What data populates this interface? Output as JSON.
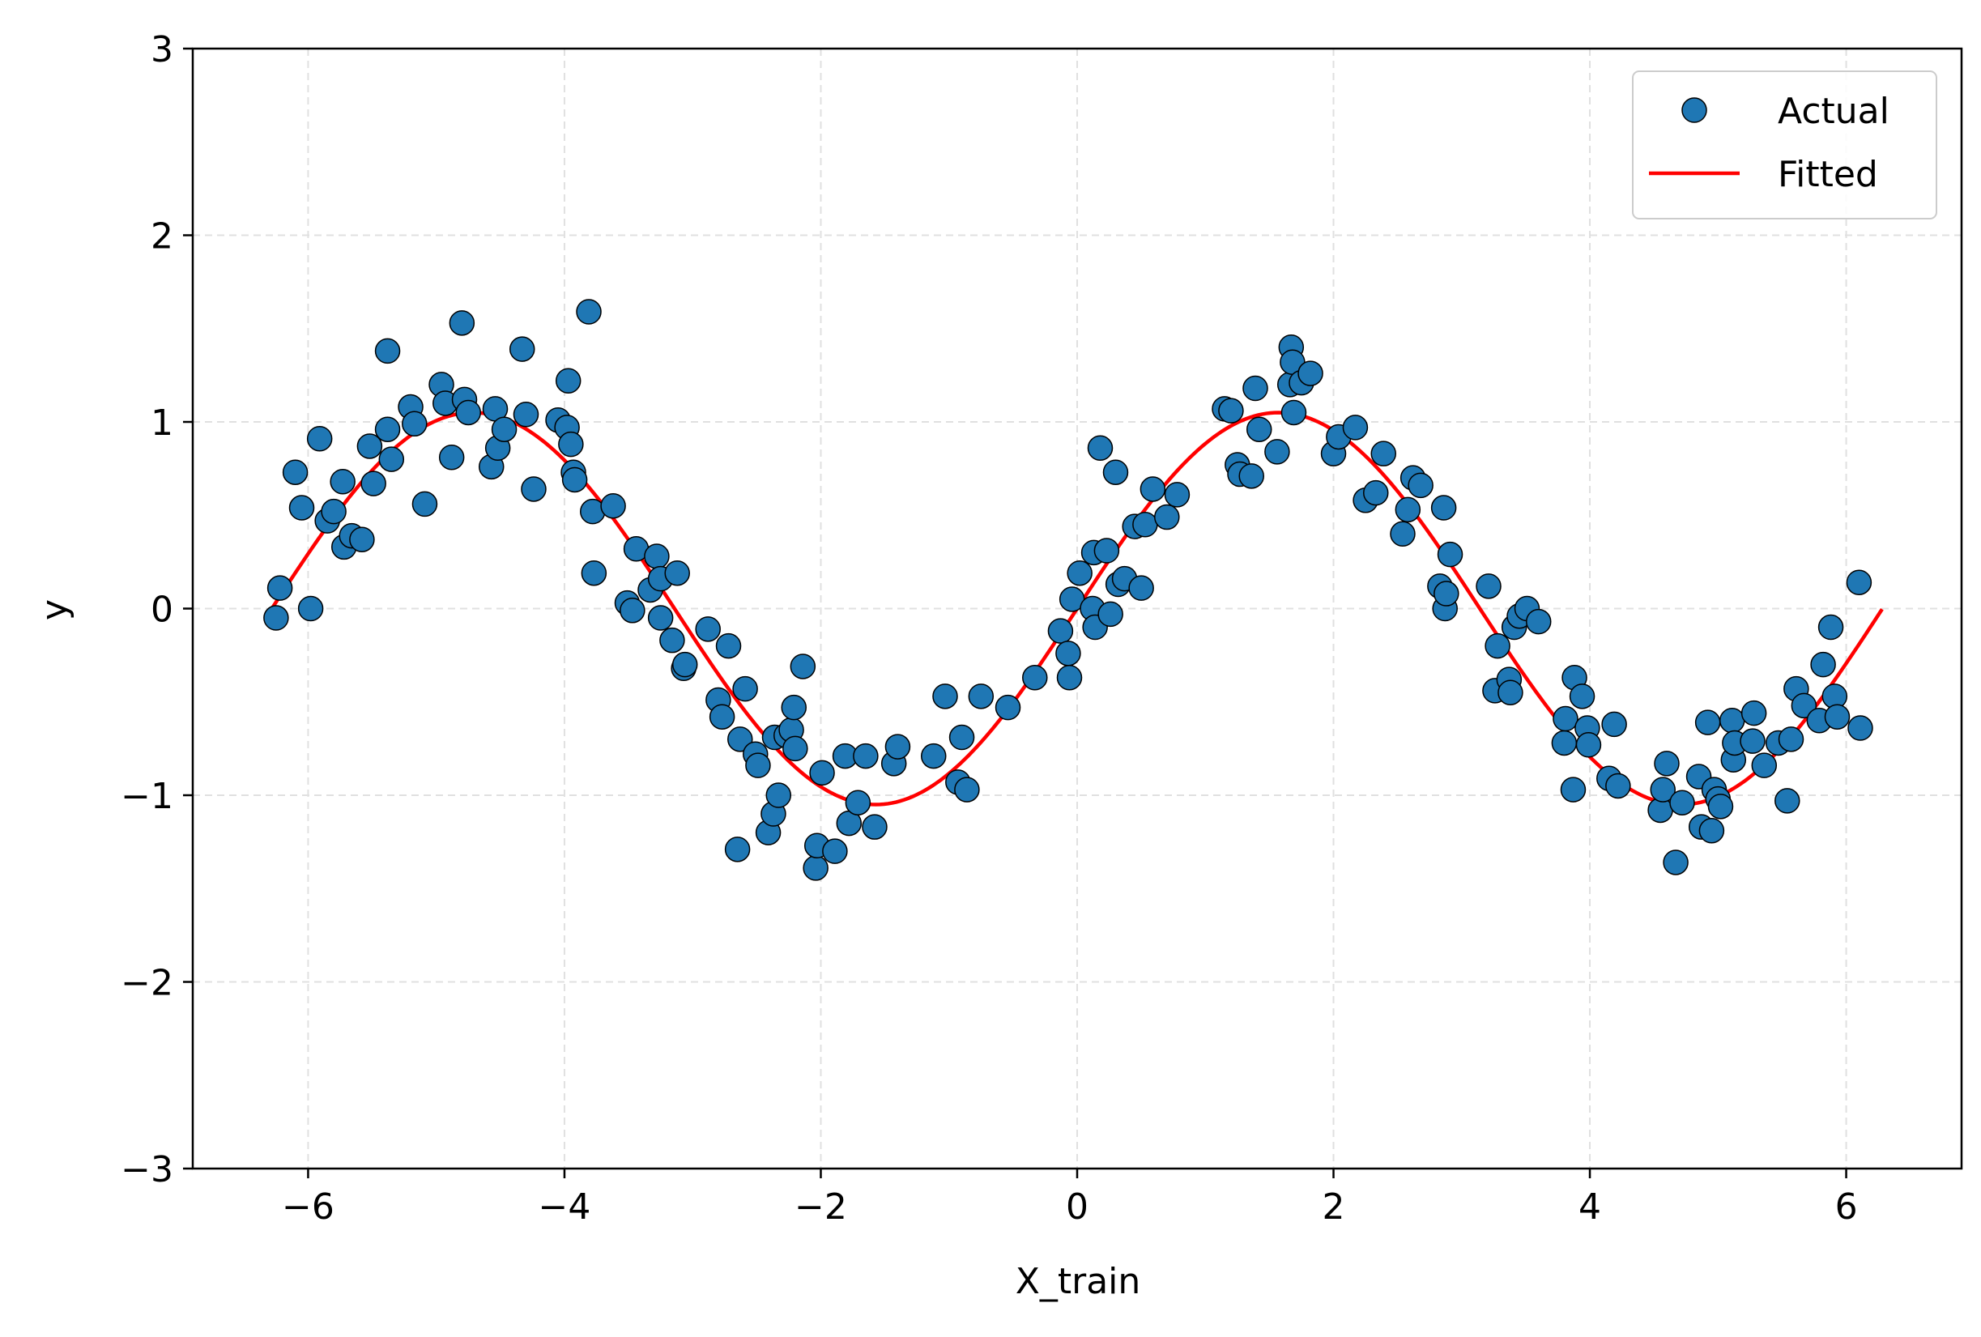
{
  "chart_data": {
    "type": "scatter",
    "title": "",
    "xlabel": "X_train",
    "ylabel": "y",
    "xlim": [
      -6.9,
      6.9
    ],
    "ylim": [
      -3,
      3
    ],
    "xticks": [
      -6,
      -4,
      -2,
      0,
      2,
      4,
      6
    ],
    "yticks": [
      -3,
      -2,
      -1,
      0,
      1,
      2,
      3
    ],
    "xtick_labels": [
      "−6",
      "−4",
      "−2",
      "0",
      "2",
      "4",
      "6"
    ],
    "ytick_labels": [
      "−3",
      "−2",
      "−1",
      "0",
      "1",
      "2",
      "3"
    ],
    "grid": true,
    "legend_position": "top-right",
    "legend": [
      {
        "label": "Actual",
        "kind": "marker",
        "color": "#1f77b4"
      },
      {
        "label": "Fitted",
        "kind": "line",
        "color": "#ff0000"
      }
    ],
    "colors": {
      "actual": "#1f77b4",
      "fitted": "#ff0000",
      "grid": "#e0e0e0"
    },
    "series": [
      {
        "name": "Actual",
        "kind": "scatter",
        "points": [
          [
            -6.25,
            -0.05
          ],
          [
            -6.22,
            0.11
          ],
          [
            -6.1,
            0.73
          ],
          [
            -6.05,
            0.54
          ],
          [
            -5.98,
            0.0
          ],
          [
            -5.91,
            0.91
          ],
          [
            -5.85,
            0.47
          ],
          [
            -5.8,
            0.52
          ],
          [
            -5.73,
            0.68
          ],
          [
            -5.72,
            0.33
          ],
          [
            -5.66,
            0.39
          ],
          [
            -5.58,
            0.37
          ],
          [
            -5.52,
            0.87
          ],
          [
            -5.49,
            0.67
          ],
          [
            -5.38,
            1.38
          ],
          [
            -5.38,
            0.96
          ],
          [
            -5.35,
            0.8
          ],
          [
            -5.2,
            1.08
          ],
          [
            -5.17,
            0.99
          ],
          [
            -5.09,
            0.56
          ],
          [
            -4.96,
            1.2
          ],
          [
            -4.93,
            1.1
          ],
          [
            -4.88,
            0.81
          ],
          [
            -4.8,
            1.53
          ],
          [
            -4.78,
            1.12
          ],
          [
            -4.75,
            1.05
          ],
          [
            -4.57,
            0.76
          ],
          [
            -4.54,
            1.07
          ],
          [
            -4.52,
            0.86
          ],
          [
            -4.47,
            0.96
          ],
          [
            -4.33,
            1.39
          ],
          [
            -4.3,
            1.04
          ],
          [
            -4.24,
            0.64
          ],
          [
            -4.05,
            1.01
          ],
          [
            -3.98,
            0.97
          ],
          [
            -3.97,
            1.22
          ],
          [
            -3.95,
            0.88
          ],
          [
            -3.93,
            0.73
          ],
          [
            -3.92,
            0.69
          ],
          [
            -3.81,
            1.59
          ],
          [
            -3.78,
            0.52
          ],
          [
            -3.77,
            0.19
          ],
          [
            -3.62,
            0.55
          ],
          [
            -3.51,
            0.03
          ],
          [
            -3.47,
            -0.01
          ],
          [
            -3.44,
            0.32
          ],
          [
            -3.33,
            0.1
          ],
          [
            -3.28,
            0.28
          ],
          [
            -3.25,
            0.16
          ],
          [
            -3.25,
            -0.05
          ],
          [
            -3.16,
            -0.17
          ],
          [
            -3.12,
            0.19
          ],
          [
            -3.07,
            -0.32
          ],
          [
            -3.06,
            -0.3
          ],
          [
            -2.88,
            -0.11
          ],
          [
            -2.8,
            -0.49
          ],
          [
            -2.77,
            -0.58
          ],
          [
            -2.72,
            -0.2
          ],
          [
            -2.65,
            -1.29
          ],
          [
            -2.63,
            -0.7
          ],
          [
            -2.59,
            -0.43
          ],
          [
            -2.51,
            -0.78
          ],
          [
            -2.49,
            -0.84
          ],
          [
            -2.41,
            -1.2
          ],
          [
            -2.37,
            -1.1
          ],
          [
            -2.36,
            -0.69
          ],
          [
            -2.33,
            -1.0
          ],
          [
            -2.27,
            -0.68
          ],
          [
            -2.23,
            -0.65
          ],
          [
            -2.21,
            -0.53
          ],
          [
            -2.2,
            -0.75
          ],
          [
            -2.14,
            -0.31
          ],
          [
            -2.04,
            -1.39
          ],
          [
            -2.03,
            -1.27
          ],
          [
            -1.99,
            -0.88
          ],
          [
            -1.89,
            -1.3
          ],
          [
            -1.81,
            -0.79
          ],
          [
            -1.78,
            -1.15
          ],
          [
            -1.71,
            -1.04
          ],
          [
            -1.65,
            -0.79
          ],
          [
            -1.58,
            -1.17
          ],
          [
            -1.43,
            -0.83
          ],
          [
            -1.4,
            -0.74
          ],
          [
            -1.12,
            -0.79
          ],
          [
            -1.03,
            -0.47
          ],
          [
            -0.93,
            -0.93
          ],
          [
            -0.9,
            -0.69
          ],
          [
            -0.86,
            -0.97
          ],
          [
            -0.75,
            -0.47
          ],
          [
            -0.54,
            -0.53
          ],
          [
            -0.33,
            -0.37
          ],
          [
            -0.13,
            -0.12
          ],
          [
            -0.07,
            -0.24
          ],
          [
            -0.06,
            -0.37
          ],
          [
            -0.04,
            0.05
          ],
          [
            0.02,
            0.19
          ],
          [
            0.12,
            0.0
          ],
          [
            0.13,
            0.3
          ],
          [
            0.14,
            -0.1
          ],
          [
            0.18,
            0.86
          ],
          [
            0.23,
            0.31
          ],
          [
            0.26,
            -0.03
          ],
          [
            0.3,
            0.73
          ],
          [
            0.32,
            0.13
          ],
          [
            0.37,
            0.16
          ],
          [
            0.45,
            0.44
          ],
          [
            0.5,
            0.11
          ],
          [
            0.53,
            0.45
          ],
          [
            0.59,
            0.64
          ],
          [
            0.7,
            0.49
          ],
          [
            0.78,
            0.61
          ],
          [
            1.15,
            1.07
          ],
          [
            1.2,
            1.06
          ],
          [
            1.25,
            0.77
          ],
          [
            1.27,
            0.72
          ],
          [
            1.36,
            0.71
          ],
          [
            1.39,
            1.18
          ],
          [
            1.42,
            0.96
          ],
          [
            1.56,
            0.84
          ],
          [
            1.66,
            1.2
          ],
          [
            1.67,
            1.4
          ],
          [
            1.68,
            1.32
          ],
          [
            1.69,
            1.05
          ],
          [
            1.75,
            1.21
          ],
          [
            1.82,
            1.26
          ],
          [
            2.0,
            0.83
          ],
          [
            2.04,
            0.92
          ],
          [
            2.17,
            0.97
          ],
          [
            2.25,
            0.58
          ],
          [
            2.33,
            0.62
          ],
          [
            2.39,
            0.83
          ],
          [
            2.54,
            0.4
          ],
          [
            2.58,
            0.53
          ],
          [
            2.62,
            0.7
          ],
          [
            2.68,
            0.66
          ],
          [
            2.83,
            0.12
          ],
          [
            2.86,
            0.54
          ],
          [
            2.87,
            0.0
          ],
          [
            2.88,
            0.08
          ],
          [
            2.91,
            0.29
          ],
          [
            3.21,
            0.12
          ],
          [
            3.26,
            -0.44
          ],
          [
            3.28,
            -0.2
          ],
          [
            3.37,
            -0.38
          ],
          [
            3.38,
            -0.45
          ],
          [
            3.41,
            -0.1
          ],
          [
            3.45,
            -0.04
          ],
          [
            3.51,
            0.0
          ],
          [
            3.6,
            -0.07
          ],
          [
            3.8,
            -0.72
          ],
          [
            3.81,
            -0.59
          ],
          [
            3.87,
            -0.97
          ],
          [
            3.88,
            -0.37
          ],
          [
            3.94,
            -0.47
          ],
          [
            3.98,
            -0.64
          ],
          [
            3.99,
            -0.73
          ],
          [
            4.15,
            -0.91
          ],
          [
            4.19,
            -0.62
          ],
          [
            4.22,
            -0.95
          ],
          [
            4.55,
            -1.08
          ],
          [
            4.57,
            -0.97
          ],
          [
            4.6,
            -0.83
          ],
          [
            4.67,
            -1.36
          ],
          [
            4.72,
            -1.04
          ],
          [
            4.85,
            -0.9
          ],
          [
            4.87,
            -1.17
          ],
          [
            4.92,
            -0.61
          ],
          [
            4.95,
            -1.19
          ],
          [
            4.97,
            -0.97
          ],
          [
            5.0,
            -1.02
          ],
          [
            5.02,
            -1.06
          ],
          [
            5.11,
            -0.6
          ],
          [
            5.12,
            -0.81
          ],
          [
            5.13,
            -0.72
          ],
          [
            5.27,
            -0.71
          ],
          [
            5.28,
            -0.56
          ],
          [
            5.36,
            -0.84
          ],
          [
            5.47,
            -0.72
          ],
          [
            5.54,
            -1.03
          ],
          [
            5.57,
            -0.7
          ],
          [
            5.61,
            -0.43
          ],
          [
            5.67,
            -0.52
          ],
          [
            5.79,
            -0.6
          ],
          [
            5.82,
            -0.3
          ],
          [
            5.88,
            -0.1
          ],
          [
            5.91,
            -0.47
          ],
          [
            5.93,
            -0.58
          ],
          [
            6.1,
            0.14
          ],
          [
            6.11,
            -0.64
          ]
        ]
      },
      {
        "name": "Fitted",
        "kind": "line",
        "x_range": [
          -6.28,
          6.28
        ],
        "model": "y = 1.05 * sin(x)",
        "amplitude": 1.05
      }
    ]
  }
}
